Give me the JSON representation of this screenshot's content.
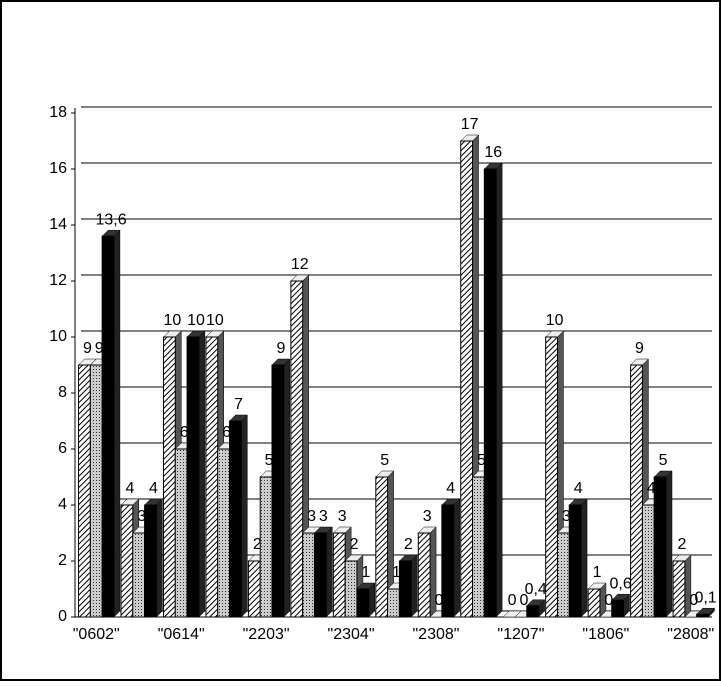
{
  "chart_data": {
    "type": "bar",
    "categories": [
      "\"0602\"",
      null,
      "\"0614\"",
      null,
      "\"2203\"",
      null,
      "\"2304\"",
      null,
      "\"2308\"",
      null,
      "\"1207\"",
      null,
      "\"1806\"",
      null,
      "\"2808\""
    ],
    "series": [
      {
        "color": "#ffffff",
        "pattern": "hatch",
        "values": [
          9,
          4,
          10,
          10,
          2,
          12,
          3,
          5,
          3,
          17,
          0,
          10,
          1,
          9,
          2
        ],
        "value_labels": [
          "9",
          "4",
          "10",
          "10",
          "2",
          "12",
          "3",
          "5",
          "3",
          "17",
          "0",
          "10",
          "1",
          "9",
          "2"
        ]
      },
      {
        "color": "#bbbbbb",
        "pattern": "dots",
        "values": [
          9,
          3,
          6,
          6,
          5,
          3,
          2,
          1,
          0,
          5,
          0,
          3,
          0,
          4,
          0
        ],
        "value_labels": [
          "9",
          "3",
          "6",
          "6",
          "5",
          "3",
          "2",
          "1",
          "0",
          "5",
          "0",
          "3",
          "0",
          "4",
          "0"
        ]
      },
      {
        "color": "#000000",
        "pattern": "solid",
        "values": [
          13.6,
          4,
          10,
          7,
          9,
          3,
          1,
          2,
          4,
          16,
          0.4,
          4,
          0.6,
          5,
          0.1
        ],
        "value_labels": [
          "13,6",
          "4",
          "10",
          "7",
          "9",
          "3",
          "1",
          "2",
          "4",
          "16",
          "0,4",
          "4",
          "0,6",
          "5",
          "0,1"
        ]
      }
    ],
    "ylim": [
      0,
      18
    ],
    "yticks": [
      0,
      2,
      4,
      6,
      8,
      10,
      12,
      14,
      16,
      18
    ],
    "grid": true
  }
}
